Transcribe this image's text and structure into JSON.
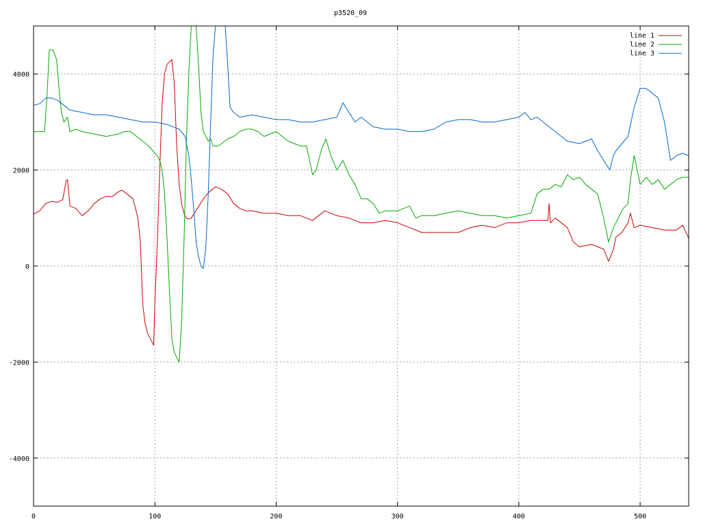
{
  "chart_data": {
    "type": "line",
    "title": "p3520_09",
    "xlabel": "",
    "ylabel": "",
    "xlim": [
      0,
      540
    ],
    "ylim": [
      -5000,
      5000
    ],
    "xticks": [
      0,
      100,
      200,
      300,
      400,
      500
    ],
    "yticks": [
      -4000,
      -2000,
      0,
      2000,
      4000
    ],
    "xtick_labels": [
      "0",
      "100",
      "200",
      "300",
      "400",
      "500"
    ],
    "ytick_labels": [
      "-4000",
      "-2000",
      "0",
      "2000",
      "4000"
    ],
    "grid": true,
    "legend_position": "top-right",
    "series": [
      {
        "name": "line 1",
        "color": "#cc0000",
        "x": [
          0,
          5,
          10,
          15,
          20,
          24,
          27,
          28,
          30,
          35,
          40,
          45,
          50,
          55,
          60,
          65,
          70,
          73,
          77,
          82,
          86,
          88,
          90,
          92,
          94,
          96,
          98,
          99,
          100,
          102,
          104,
          106,
          108,
          110,
          112,
          114,
          116,
          118,
          120,
          122,
          124,
          126,
          128,
          130,
          135,
          140,
          145,
          150,
          155,
          160,
          165,
          170,
          175,
          180,
          190,
          200,
          210,
          220,
          230,
          240,
          250,
          260,
          270,
          280,
          290,
          300,
          310,
          320,
          330,
          340,
          350,
          360,
          370,
          380,
          390,
          400,
          410,
          420,
          424,
          425,
          426,
          430,
          440,
          445,
          450,
          460,
          470,
          474,
          478,
          480,
          485,
          490,
          492,
          495,
          500,
          510,
          520,
          530,
          535,
          540
        ],
        "y": [
          1080,
          1150,
          1300,
          1350,
          1330,
          1380,
          1780,
          1800,
          1250,
          1200,
          1050,
          1150,
          1300,
          1400,
          1450,
          1450,
          1550,
          1580,
          1500,
          1400,
          1000,
          500,
          -800,
          -1200,
          -1400,
          -1500,
          -1600,
          -1650,
          -800,
          500,
          2000,
          3400,
          4000,
          4200,
          4250,
          4300,
          3800,
          2500,
          1700,
          1300,
          1100,
          1000,
          980,
          1000,
          1200,
          1400,
          1550,
          1650,
          1600,
          1500,
          1300,
          1200,
          1150,
          1150,
          1100,
          1100,
          1050,
          1050,
          950,
          1150,
          1050,
          1000,
          900,
          900,
          950,
          900,
          800,
          700,
          700,
          700,
          700,
          800,
          850,
          800,
          900,
          900,
          950,
          950,
          950,
          1300,
          900,
          1000,
          800,
          500,
          400,
          450,
          350,
          100,
          350,
          600,
          700,
          900,
          1100,
          800,
          850,
          800,
          750,
          750,
          850,
          580
        ]
      },
      {
        "name": "line 2",
        "color": "#00aa00",
        "x": [
          0,
          5,
          9,
          11,
          13,
          16,
          19,
          21,
          23,
          25,
          28,
          30,
          35,
          40,
          50,
          60,
          70,
          75,
          80,
          85,
          90,
          95,
          100,
          102,
          104,
          106,
          108,
          110,
          112,
          114,
          116,
          118,
          120,
          122,
          124,
          126,
          128,
          130,
          132,
          134,
          136,
          138,
          140,
          142,
          144,
          146,
          148,
          150,
          152,
          155,
          160,
          165,
          170,
          175,
          180,
          185,
          190,
          200,
          210,
          220,
          225,
          230,
          233,
          237,
          241,
          245,
          250,
          255,
          260,
          265,
          270,
          275,
          280,
          285,
          290,
          300,
          310,
          315,
          320,
          330,
          340,
          350,
          360,
          370,
          380,
          390,
          400,
          410,
          415,
          420,
          425,
          430,
          435,
          440,
          445,
          450,
          455,
          460,
          465,
          470,
          474,
          478,
          482,
          486,
          490,
          492,
          495,
          500,
          505,
          510,
          515,
          520,
          530,
          535,
          540
        ],
        "y": [
          2800,
          2800,
          2800,
          3500,
          4500,
          4500,
          4300,
          3700,
          3200,
          3000,
          3100,
          2800,
          2850,
          2800,
          2750,
          2700,
          2750,
          2800,
          2800,
          2700,
          2600,
          2500,
          2350,
          2300,
          2200,
          2000,
          1500,
          600,
          -500,
          -1500,
          -1800,
          -1900,
          -2000,
          -1200,
          500,
          2600,
          4000,
          5000,
          5000,
          5000,
          4200,
          3200,
          2800,
          2700,
          2600,
          2650,
          2500,
          2500,
          2500,
          2550,
          2650,
          2700,
          2800,
          2850,
          2850,
          2800,
          2700,
          2800,
          2600,
          2500,
          2500,
          1900,
          2000,
          2400,
          2650,
          2300,
          2000,
          2200,
          1900,
          1700,
          1400,
          1400,
          1300,
          1100,
          1150,
          1150,
          1250,
          1000,
          1050,
          1050,
          1100,
          1150,
          1100,
          1050,
          1050,
          1000,
          1050,
          1100,
          1500,
          1600,
          1600,
          1700,
          1650,
          1900,
          1800,
          1850,
          1700,
          1600,
          1500,
          1000,
          500,
          800,
          1000,
          1200,
          1300,
          1800,
          2300,
          1700,
          1850,
          1700,
          1800,
          1600,
          1800,
          1850,
          1850
        ]
      },
      {
        "name": "line 3",
        "color": "#0066cc",
        "x": [
          0,
          5,
          10,
          15,
          20,
          25,
          30,
          40,
          50,
          60,
          70,
          80,
          90,
          100,
          110,
          120,
          125,
          128,
          130,
          132,
          134,
          136,
          138,
          140,
          142,
          144,
          146,
          148,
          150,
          152,
          154,
          156,
          158,
          160,
          162,
          165,
          170,
          180,
          190,
          200,
          210,
          220,
          230,
          240,
          250,
          255,
          260,
          265,
          270,
          280,
          290,
          300,
          310,
          320,
          330,
          340,
          350,
          360,
          370,
          380,
          390,
          400,
          405,
          410,
          415,
          420,
          430,
          440,
          450,
          460,
          465,
          470,
          475,
          478,
          480,
          485,
          490,
          495,
          500,
          505,
          510,
          515,
          520,
          522,
          525,
          530,
          535,
          540
        ],
        "y": [
          3350,
          3380,
          3500,
          3500,
          3450,
          3350,
          3250,
          3200,
          3150,
          3150,
          3100,
          3050,
          3000,
          3000,
          2950,
          2850,
          2700,
          2300,
          1800,
          1200,
          500,
          200,
          0,
          -50,
          400,
          1500,
          3000,
          4400,
          5000,
          5000,
          5000,
          5000,
          5000,
          4200,
          3300,
          3200,
          3100,
          3150,
          3100,
          3050,
          3050,
          3000,
          3000,
          3050,
          3100,
          3400,
          3200,
          3000,
          3100,
          2900,
          2850,
          2850,
          2800,
          2800,
          2850,
          3000,
          3050,
          3050,
          3000,
          3000,
          3050,
          3100,
          3200,
          3050,
          3100,
          3000,
          2800,
          2600,
          2550,
          2650,
          2400,
          2200,
          2000,
          2300,
          2400,
          2550,
          2700,
          3300,
          3700,
          3700,
          3600,
          3500,
          3000,
          2700,
          2200,
          2300,
          2350,
          2300
        ]
      }
    ]
  }
}
